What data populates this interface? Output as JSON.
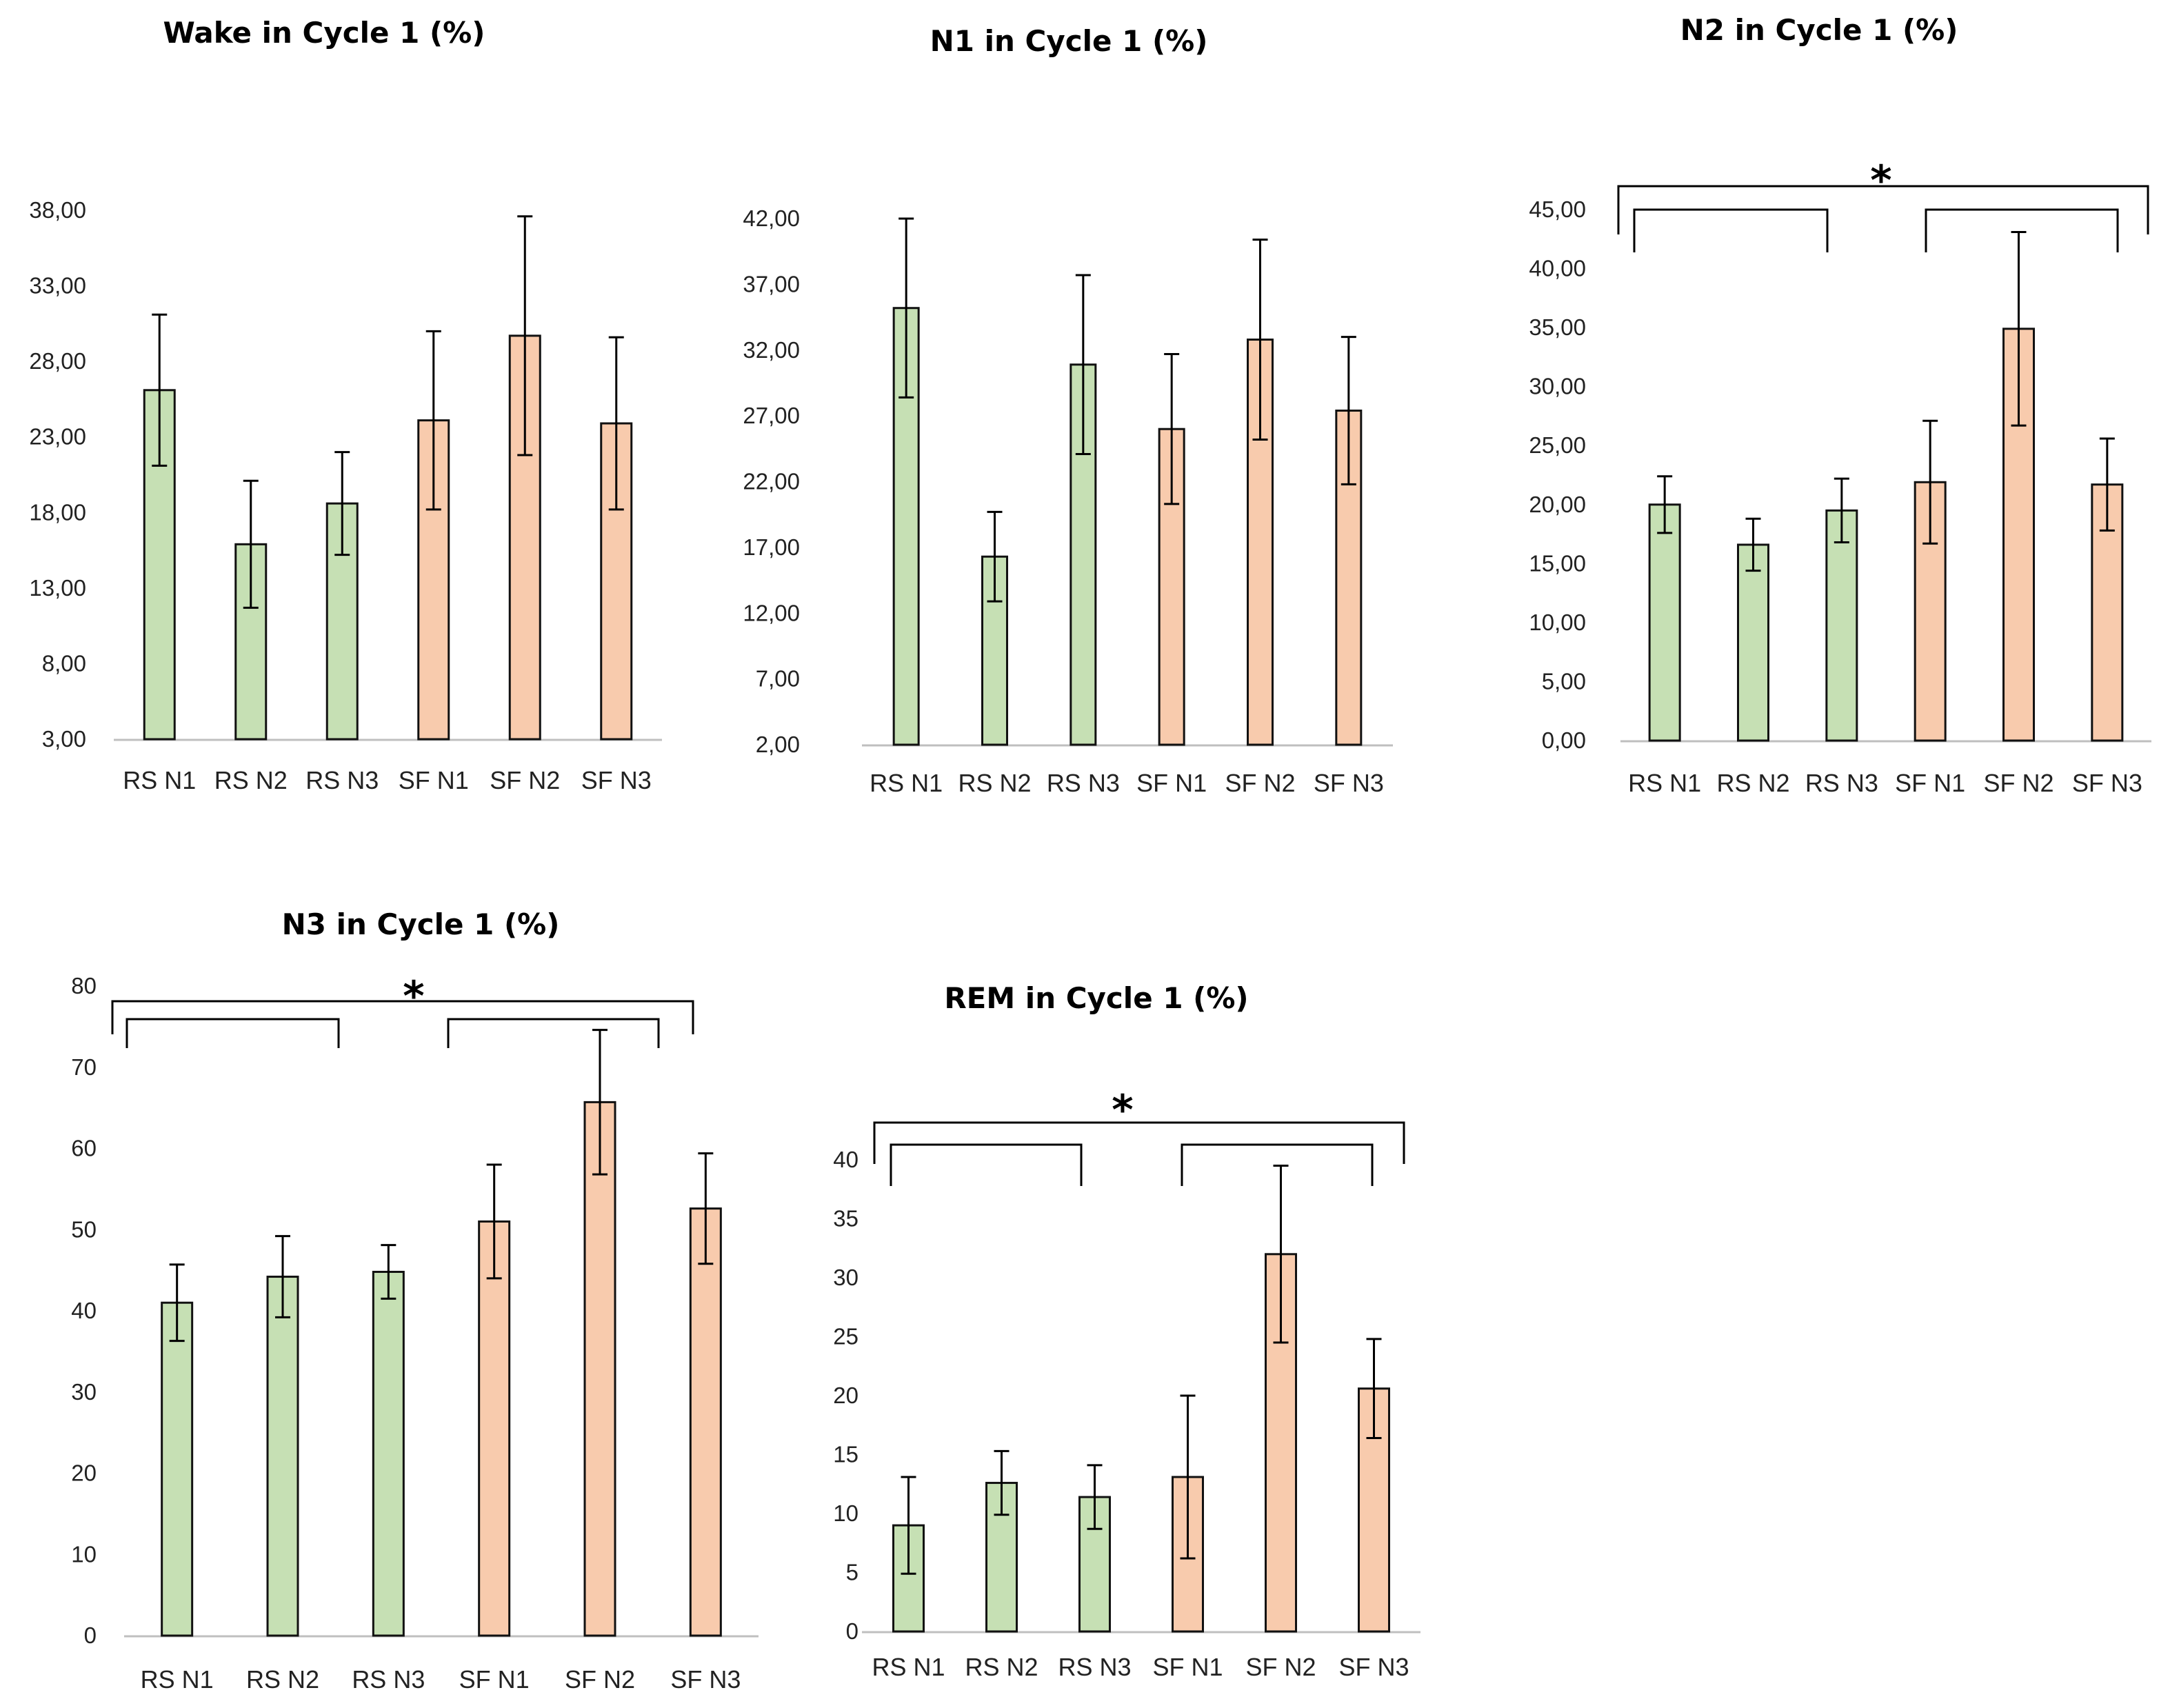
{
  "colors": {
    "rs": "#c6e0b4",
    "sf": "#f8cbad",
    "bar_stroke": "#111111",
    "axis": "#bfbfbf",
    "error_bar": "#000000",
    "bracket": "#000000"
  },
  "chart_data": [
    {
      "id": "wake",
      "type": "bar",
      "title": "Wake in Cycle 1 (%)",
      "categories": [
        "RS N1",
        "RS N2",
        "RS N3",
        "SF N1",
        "SF N2",
        "SF N3"
      ],
      "values": [
        26.1,
        15.9,
        18.6,
        24.1,
        29.7,
        23.9
      ],
      "errors": [
        5.0,
        4.2,
        3.4,
        5.9,
        7.9,
        5.7
      ],
      "colors": [
        "rs",
        "rs",
        "rs",
        "sf",
        "sf",
        "sf"
      ],
      "ylim": [
        3,
        38
      ],
      "yticks": [
        "3,00",
        "8,00",
        "13,00",
        "18,00",
        "23,00",
        "28,00",
        "33,00",
        "38,00"
      ],
      "grid": false,
      "significance": null
    },
    {
      "id": "n1",
      "type": "bar",
      "title": "N1 in Cycle 1 (%)",
      "categories": [
        "RS N1",
        "RS N2",
        "RS N3",
        "SF N1",
        "SF N2",
        "SF N3"
      ],
      "values": [
        35.2,
        16.3,
        30.9,
        26.0,
        32.8,
        27.4
      ],
      "errors": [
        6.8,
        3.4,
        6.8,
        5.7,
        7.6,
        5.6
      ],
      "colors": [
        "rs",
        "rs",
        "rs",
        "sf",
        "sf",
        "sf"
      ],
      "ylim": [
        2,
        42
      ],
      "yticks": [
        "2,00",
        "7,00",
        "12,00",
        "17,00",
        "22,00",
        "27,00",
        "32,00",
        "37,00",
        "42,00"
      ],
      "grid": false,
      "significance": null
    },
    {
      "id": "n2",
      "type": "bar",
      "title": "N2 in Cycle 1 (%)",
      "categories": [
        "RS N1",
        "RS N2",
        "RS N3",
        "SF N1",
        "SF N2",
        "SF N3"
      ],
      "values": [
        20.0,
        16.6,
        19.5,
        21.9,
        34.9,
        21.7
      ],
      "errors": [
        2.4,
        2.2,
        2.7,
        5.2,
        8.2,
        3.9
      ],
      "colors": [
        "rs",
        "rs",
        "rs",
        "sf",
        "sf",
        "sf"
      ],
      "ylim": [
        0,
        45
      ],
      "yticks": [
        "0,00",
        "5,00",
        "10,00",
        "15,00",
        "20,00",
        "25,00",
        "30,00",
        "35,00",
        "40,00",
        "45,00"
      ],
      "grid": false,
      "significance": "*"
    },
    {
      "id": "n3",
      "type": "bar",
      "title": "N3 in Cycle 1 (%)",
      "categories": [
        "RS N1",
        "RS N2",
        "RS N3",
        "SF N1",
        "SF N2",
        "SF N3"
      ],
      "values": [
        41.0,
        44.2,
        44.8,
        51.0,
        65.7,
        52.6
      ],
      "errors": [
        4.7,
        5.0,
        3.3,
        7.0,
        8.9,
        6.8
      ],
      "colors": [
        "rs",
        "rs",
        "rs",
        "sf",
        "sf",
        "sf"
      ],
      "ylim": [
        0,
        80
      ],
      "yticks": [
        "0",
        "10",
        "20",
        "30",
        "40",
        "50",
        "60",
        "70",
        "80"
      ],
      "grid": false,
      "significance": "*"
    },
    {
      "id": "rem",
      "type": "bar",
      "title": "REM in Cycle 1 (%)",
      "categories": [
        "RS N1",
        "RS N2",
        "RS N3",
        "SF N1",
        "SF N2",
        "SF N3"
      ],
      "values": [
        9.0,
        12.6,
        11.4,
        13.1,
        32.0,
        20.6
      ],
      "errors": [
        4.1,
        2.7,
        2.7,
        6.9,
        7.5,
        4.2
      ],
      "colors": [
        "rs",
        "rs",
        "rs",
        "sf",
        "sf",
        "sf"
      ],
      "ylim": [
        0,
        40
      ],
      "yticks": [
        "0",
        "5",
        "10",
        "15",
        "20",
        "25",
        "30",
        "35",
        "40"
      ],
      "grid": false,
      "significance": "*"
    }
  ]
}
